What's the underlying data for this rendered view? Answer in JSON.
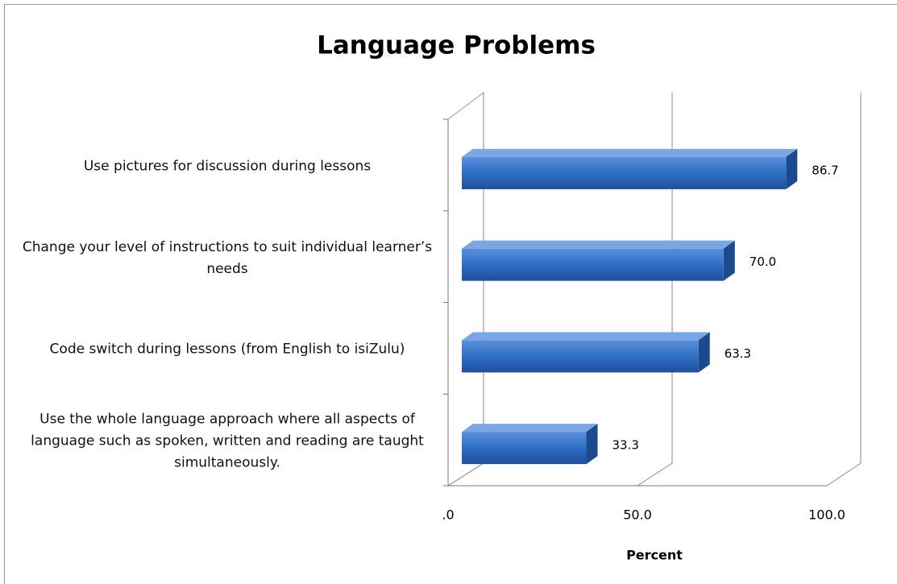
{
  "chart_data": {
    "type": "bar",
    "orientation": "horizontal",
    "title": "Language Problems",
    "categories": [
      "Use pictures for discussion during lessons",
      "Change your level of instructions to suit individual learner’s needs",
      "Code switch during lessons (from English to isiZulu)",
      "Use the whole language approach where all aspects of language such as spoken, written and reading are taught simultaneously."
    ],
    "values": [
      86.7,
      70.0,
      63.3,
      33.3
    ],
    "value_labels": [
      "86.7",
      "70.0",
      "63.3",
      "33.3"
    ],
    "color": "#2e6fc4",
    "xlim": [
      0,
      100
    ],
    "xticks": [
      {
        "value": 0,
        "label": ".0"
      },
      {
        "value": 50,
        "label": "50.0"
      },
      {
        "value": 100,
        "label": "100.0"
      }
    ],
    "x_label": "Percent",
    "grid": true
  }
}
